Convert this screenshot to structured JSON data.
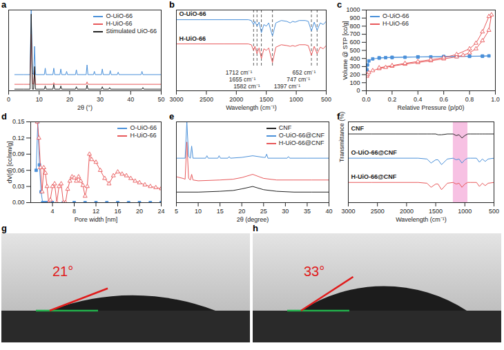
{
  "chart_data": [
    {
      "panel": "a",
      "type": "line",
      "xlabel": "2θ (°)",
      "xlim": [
        0,
        50
      ],
      "xticks": [
        0,
        10,
        20,
        30,
        40,
        50
      ],
      "ylim": [
        0,
        100
      ],
      "tick_labels": "x",
      "legend": "top-right",
      "series": [
        {
          "name": "O-UiO-66",
          "color": "#4a90d9",
          "x": [
            2,
            5,
            7.0,
            7.4,
            7.8,
            8.2,
            8.5,
            8.8,
            11.7,
            12.0,
            12.3,
            14.5,
            14.8,
            15.1,
            16.8,
            17.1,
            17.4,
            18.7,
            19.0,
            19.3,
            21.9,
            22.2,
            22.5,
            25.4,
            25.7,
            26.0,
            27.8,
            28.1,
            28.4,
            30.4,
            30.7,
            31.0,
            33.0,
            33.3,
            33.6,
            35.6,
            35.9,
            36.2,
            43.4,
            43.7,
            44.0,
            50
          ],
          "values": [
            20,
            20,
            20,
            100,
            22,
            20,
            55,
            20,
            20,
            28,
            20,
            20,
            28,
            20,
            20,
            27,
            20,
            20,
            24,
            20,
            20,
            26,
            20,
            20,
            32,
            20,
            20,
            24,
            20,
            20,
            27,
            20,
            20,
            25,
            20,
            20,
            23,
            20,
            20,
            24,
            20,
            20
          ]
        },
        {
          "name": "H-UiO-66",
          "color": "#e8585a",
          "x": [
            2,
            5,
            7.0,
            7.4,
            7.8,
            8.2,
            8.5,
            8.8,
            14.5,
            14.8,
            15.1,
            25.4,
            25.7,
            26.0,
            50
          ],
          "values": [
            8,
            8,
            8,
            70,
            9,
            8,
            25,
            8,
            8,
            10,
            8,
            8,
            11,
            8,
            8
          ]
        },
        {
          "name": "Stimulated UiO-66",
          "color": "#222222",
          "x": [
            2,
            5,
            7.0,
            7.4,
            7.8,
            8.2,
            8.5,
            8.8,
            11.7,
            12.0,
            12.3,
            14.5,
            14.8,
            15.1,
            16.8,
            17.1,
            17.4,
            21.9,
            22.2,
            22.5,
            25.4,
            25.7,
            26.0,
            30.4,
            30.7,
            31.0,
            32.8,
            33.1,
            33.4,
            43.7,
            44.0,
            44.3,
            50
          ],
          "values": [
            2,
            2,
            2,
            95,
            2,
            2,
            30,
            2,
            2,
            6,
            2,
            2,
            8,
            2,
            2,
            6,
            2,
            2,
            5,
            2,
            2,
            7,
            2,
            2,
            5,
            2,
            2,
            4,
            2,
            2,
            4,
            2,
            2
          ]
        }
      ]
    },
    {
      "panel": "b",
      "type": "line",
      "xlabel": "Wavelength (cm⁻¹)",
      "xlim": [
        3000,
        500
      ],
      "xticks": [
        3000,
        2500,
        2000,
        1500,
        1000,
        500
      ],
      "ylim": [
        0,
        100
      ],
      "tick_labels": "x",
      "annotations": [
        {
          "x": 1712,
          "label": "1712 cm⁻¹"
        },
        {
          "x": 1655,
          "label": "1655 cm⁻¹"
        },
        {
          "x": 1582,
          "label": "1582 cm⁻¹"
        },
        {
          "x": 1397,
          "label": "1397 cm⁻¹"
        },
        {
          "x": 747,
          "label": "747 cm⁻¹"
        },
        {
          "x": 652,
          "label": "652 cm⁻¹"
        }
      ],
      "series": [
        {
          "name": "O-UiO-66",
          "color": "#4a90d9",
          "x": [
            3000,
            2600,
            2200,
            1800,
            1750,
            1712,
            1690,
            1655,
            1620,
            1582,
            1540,
            1500,
            1460,
            1397,
            1340,
            1250,
            1160,
            1100,
            1060,
            1020,
            950,
            850,
            800,
            747,
            700,
            652,
            600,
            550,
            500
          ],
          "values": [
            88,
            88,
            88,
            88,
            87,
            82,
            86,
            80,
            85,
            72,
            82,
            80,
            84,
            68,
            84,
            87,
            86,
            84,
            86,
            85,
            87,
            87,
            86,
            74,
            85,
            75,
            84,
            82,
            86
          ]
        },
        {
          "name": "H-UiO-66",
          "color": "#e8585a",
          "x": [
            3000,
            2600,
            2200,
            1800,
            1750,
            1712,
            1690,
            1655,
            1620,
            1582,
            1540,
            1500,
            1460,
            1397,
            1340,
            1250,
            1160,
            1100,
            1060,
            1020,
            950,
            850,
            800,
            747,
            700,
            652,
            600,
            550,
            500
          ],
          "values": [
            58,
            58,
            58,
            58,
            57,
            50,
            55,
            46,
            53,
            40,
            52,
            50,
            53,
            35,
            54,
            57,
            56,
            55,
            56,
            55,
            57,
            57,
            56,
            44,
            55,
            46,
            54,
            52,
            56
          ]
        }
      ]
    },
    {
      "panel": "c",
      "type": "line",
      "xlabel": "Relative Pressure (p/p0)",
      "ylabel": "Volume @ STP [cc/g]",
      "xlim": [
        0,
        1.0
      ],
      "xticks": [
        {
          "value": 0,
          "label": "0.0"
        },
        {
          "value": 0.2,
          "label": "0.2"
        },
        {
          "value": 0.4,
          "label": "0.4"
        },
        {
          "value": 0.6,
          "label": "0.6"
        },
        {
          "value": 0.8,
          "label": "0.8"
        },
        {
          "value": 1.0,
          "label": "1.0"
        }
      ],
      "ylim": [
        0,
        1000
      ],
      "yticks": [
        0,
        100,
        200,
        300,
        400,
        500,
        600,
        700,
        800,
        900,
        1000
      ],
      "legend": "top-left",
      "series": [
        {
          "name": "O-UiO-66",
          "color": "#4a90d9",
          "marker": "square",
          "x": [
            0.005,
            0.01,
            0.02,
            0.05,
            0.1,
            0.15,
            0.2,
            0.3,
            0.4,
            0.5,
            0.6,
            0.7,
            0.8,
            0.9,
            0.95,
            0.9,
            0.8,
            0.6,
            0.4,
            0.2,
            0.1
          ],
          "values": [
            260,
            320,
            370,
            395,
            405,
            410,
            412,
            415,
            418,
            420,
            422,
            424,
            426,
            428,
            432,
            430,
            428,
            424,
            420,
            414,
            408
          ]
        },
        {
          "name": "H-UiO-66",
          "color": "#e8585a",
          "marker": "triangle",
          "x": [
            0.005,
            0.01,
            0.02,
            0.05,
            0.1,
            0.15,
            0.2,
            0.3,
            0.4,
            0.5,
            0.6,
            0.7,
            0.75,
            0.8,
            0.85,
            0.9,
            0.95,
            0.97,
            0.95,
            0.9,
            0.85,
            0.8,
            0.7,
            0.6,
            0.5,
            0.4,
            0.3,
            0.2,
            0.1
          ],
          "values": [
            180,
            200,
            225,
            250,
            275,
            290,
            305,
            330,
            350,
            372,
            395,
            420,
            440,
            470,
            520,
            620,
            750,
            940,
            920,
            730,
            590,
            520,
            450,
            410,
            385,
            362,
            340,
            312,
            285
          ]
        }
      ]
    },
    {
      "panel": "d",
      "type": "line",
      "xlabel": "Pore width [nm]",
      "ylabel": "dV(d) [cc/nm/g]",
      "xlim": [
        0,
        24
      ],
      "xticks": [
        4,
        8,
        12,
        16,
        20,
        24
      ],
      "ylim": [
        0,
        0.15
      ],
      "yticks": [
        {
          "value": 0,
          "label": "0.00"
        },
        {
          "value": 0.03,
          "label": "0.03"
        },
        {
          "value": 0.06,
          "label": "0.06"
        },
        {
          "value": 0.09,
          "label": "0.09"
        },
        {
          "value": 0.12,
          "label": "0.12"
        },
        {
          "value": 0.15,
          "label": "0.15"
        }
      ],
      "legend": "top-right",
      "series": [
        {
          "name": "O-UiO-66",
          "color": "#4a90d9",
          "marker": "square",
          "x": [
            1.0,
            1.3,
            1.6,
            1.9,
            2.2,
            2.6,
            3,
            4,
            6,
            8,
            10,
            12,
            14,
            16,
            18,
            20,
            22,
            24
          ],
          "values": [
            0.06,
            0.15,
            0.07,
            0.02,
            0,
            0,
            0,
            0,
            0,
            0,
            0,
            0,
            0,
            0,
            0,
            0,
            0,
            0
          ]
        },
        {
          "name": "H-UiO-66",
          "color": "#e8585a",
          "marker": "triangle",
          "x": [
            1.2,
            1.5,
            1.8,
            2.1,
            2.4,
            2.7,
            3.0,
            3.3,
            3.6,
            4.0,
            4.4,
            4.8,
            5.2,
            5.6,
            6.0,
            6.4,
            6.8,
            7.2,
            7.6,
            8.0,
            8.4,
            8.8,
            9.2,
            9.6,
            10.0,
            10.4,
            10.8,
            11.2,
            12,
            12.8,
            13.6,
            14.4,
            15.2,
            16,
            16.8,
            17.6,
            18.4,
            19.2,
            20,
            21,
            22,
            23,
            24
          ],
          "values": [
            0.15,
            0.12,
            0.065,
            0.02,
            0.065,
            0.055,
            0.03,
            0.0,
            0.005,
            0.03,
            0.035,
            0.0,
            0.03,
            0.035,
            0.0,
            0.0,
            0.025,
            0.04,
            0.048,
            0.046,
            0.04,
            0.048,
            0.04,
            0.032,
            0.012,
            0.03,
            0.09,
            0.08,
            0.075,
            0.06,
            0.045,
            0.035,
            0.05,
            0.057,
            0.053,
            0.05,
            0.045,
            0.04,
            0.037,
            0.033,
            0.03,
            0.028,
            0.026
          ]
        }
      ]
    },
    {
      "panel": "e",
      "type": "line",
      "xlabel": "2θ (degree)",
      "xlim": [
        5,
        40
      ],
      "xticks": [
        5,
        10,
        15,
        20,
        25,
        30,
        35,
        40
      ],
      "ylim": [
        0,
        100
      ],
      "tick_labels": "x",
      "legend": "top-right",
      "series": [
        {
          "name": "CNF",
          "color": "#222222",
          "x": [
            5,
            10,
            15,
            18,
            20,
            22.5,
            25,
            28,
            32,
            36,
            40
          ],
          "values": [
            13,
            13,
            14,
            15,
            17,
            20,
            16,
            14,
            13,
            13,
            13
          ]
        },
        {
          "name": "O-UiO-66@CNF",
          "color": "#4a90d9",
          "x": [
            5,
            7.0,
            7.4,
            7.8,
            8.2,
            8.5,
            8.8,
            11.7,
            12.0,
            12.3,
            14.5,
            14.8,
            15.1,
            16.8,
            17.1,
            17.4,
            20,
            22.5,
            25,
            25.4,
            25.7,
            26.0,
            30.4,
            30.7,
            31.0,
            35,
            40
          ],
          "values": [
            55,
            55,
            100,
            57,
            55,
            70,
            55,
            55,
            58,
            55,
            55,
            58,
            55,
            55,
            57,
            55,
            56,
            58,
            56,
            56,
            60,
            55,
            55,
            57,
            55,
            55,
            55
          ]
        },
        {
          "name": "H-UiO-66@CNF",
          "color": "#e8585a",
          "x": [
            5,
            6.5,
            7.0,
            7.4,
            7.8,
            8.2,
            8.5,
            8.8,
            10,
            15,
            18,
            20,
            22.5,
            25,
            28,
            32,
            36,
            40
          ],
          "values": [
            32,
            30,
            29,
            75,
            30,
            28,
            35,
            28,
            27,
            28,
            29,
            31,
            35,
            30,
            28,
            28,
            28,
            28
          ]
        }
      ]
    },
    {
      "panel": "f",
      "type": "line",
      "xlabel": "Wavelength (cm⁻¹)",
      "ylabel": "Transmittance (%)",
      "xlim": [
        3000,
        500
      ],
      "xticks": [
        3000,
        2500,
        2000,
        1500,
        1000,
        500
      ],
      "ylim": [
        0,
        100
      ],
      "tick_labels": "x",
      "highlight": [
        1200,
        950
      ],
      "series": [
        {
          "name": "CNF",
          "color": "#222222",
          "x": [
            3000,
            2600,
            2200,
            1800,
            1650,
            1580,
            1500,
            1460,
            1400,
            1300,
            1200,
            1150,
            1100,
            1050,
            1000,
            950,
            900,
            800,
            750,
            700,
            650,
            600,
            500
          ],
          "values": [
            85,
            85,
            85,
            85,
            85,
            85,
            85,
            84,
            84,
            85,
            85,
            83,
            84,
            80,
            83,
            85,
            85,
            85,
            85,
            85,
            85,
            85,
            85
          ]
        },
        {
          "name": "O-UiO-66@CNF",
          "color": "#4a90d9",
          "x": [
            3000,
            2600,
            2200,
            1800,
            1650,
            1580,
            1500,
            1460,
            1400,
            1300,
            1200,
            1150,
            1100,
            1050,
            1000,
            950,
            900,
            800,
            750,
            700,
            650,
            600,
            500
          ],
          "values": [
            55,
            55,
            55,
            55,
            54,
            49,
            53,
            53,
            47,
            54,
            55,
            53,
            54,
            49,
            53,
            55,
            55,
            55,
            50,
            54,
            51,
            54,
            55
          ]
        },
        {
          "name": "H-UiO-66@CNF",
          "color": "#e8585a",
          "x": [
            3000,
            2600,
            2200,
            1800,
            1650,
            1580,
            1500,
            1460,
            1400,
            1300,
            1200,
            1150,
            1100,
            1050,
            1000,
            950,
            900,
            800,
            750,
            700,
            650,
            600,
            500
          ],
          "values": [
            25,
            25,
            25,
            25,
            24,
            19,
            23,
            23,
            16,
            24,
            25,
            23,
            24,
            19,
            23,
            25,
            25,
            25,
            20,
            24,
            21,
            24,
            25
          ]
        }
      ]
    }
  ],
  "images": [
    {
      "panel": "g",
      "angle": 21,
      "label": "21°"
    },
    {
      "panel": "h",
      "angle": 33,
      "label": "33°"
    }
  ]
}
